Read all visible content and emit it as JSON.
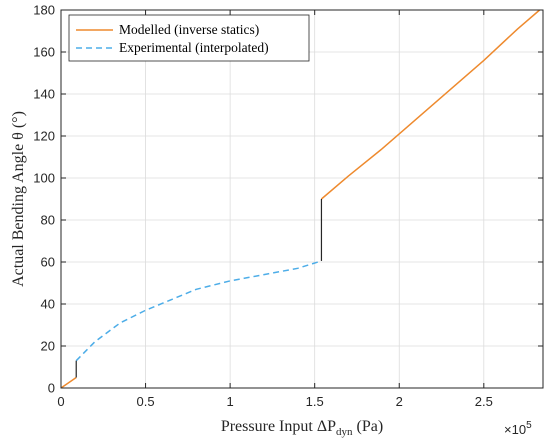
{
  "chart_data": {
    "type": "line",
    "title": "",
    "xlabel": "Pressure Input ΔP",
    "xlabel_sub": "dyn",
    "xlabel_unit": " (Pa)",
    "ylabel": "Actual Bending Angle θ (°)",
    "x_exponent_base": "×10",
    "x_exponent_power": "5",
    "xlim": [
      0,
      2.85
    ],
    "ylim": [
      0,
      180
    ],
    "x_scale_note": "x values in units of 1e5 Pa",
    "xticks": [
      0,
      0.5,
      1,
      1.5,
      2,
      2.5
    ],
    "xtick_labels": [
      "0",
      "0.5",
      "1",
      "1.5",
      "2",
      "2.5"
    ],
    "yticks": [
      0,
      20,
      40,
      60,
      80,
      100,
      120,
      140,
      160,
      180
    ],
    "ytick_labels": [
      "0",
      "20",
      "40",
      "60",
      "80",
      "100",
      "120",
      "140",
      "160",
      "180"
    ],
    "grid": true,
    "legend_position": "top-left",
    "series": [
      {
        "name": "Modelled (inverse statics)",
        "color": "#EE8A2E",
        "style": "solid",
        "segments": [
          {
            "x": [
              0,
              0.09
            ],
            "y": [
              0,
              5
            ]
          },
          {
            "x": [
              1.54,
              1.7,
              1.9,
              2.1,
              2.3,
              2.5,
              2.7,
              2.83
            ],
            "y": [
              90,
              101,
              114,
              128,
              142,
              156,
              171,
              180
            ]
          }
        ]
      },
      {
        "name": "Experimental (interpolated)",
        "color": "#4DADE8",
        "style": "dashed",
        "segments": [
          {
            "x": [
              0.09,
              0.2,
              0.35,
              0.5,
              0.65,
              0.8,
              1.0,
              1.2,
              1.4,
              1.54
            ],
            "y": [
              13,
              22,
              31,
              37,
              42,
              47,
              51,
              54,
              57,
              60.5
            ]
          }
        ]
      },
      {
        "name": "",
        "color": "#262626",
        "style": "solid",
        "segments": [
          {
            "x": [
              0.09,
              0.09
            ],
            "y": [
              5,
              13
            ]
          },
          {
            "x": [
              1.54,
              1.54
            ],
            "y": [
              60.5,
              90
            ]
          }
        ]
      }
    ]
  }
}
